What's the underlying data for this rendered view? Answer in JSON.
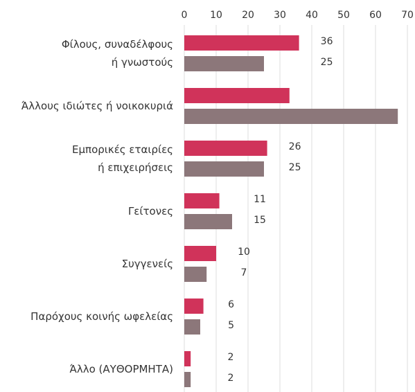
{
  "chart_data": {
    "type": "bar",
    "orientation": "horizontal",
    "categories": [
      "Φίλους, συναδέλφους\nή γνωστούς",
      "Άλλους ιδιώτες ή νοικοκυριά",
      "Εμπορικές εταιρίες\nή επιχειρήσεις",
      "Γείτονες",
      "Συγγενείς",
      "Παρόχους κοινής ωφελείας",
      "Άλλο (ΑΥΘΟΡΜΗΤΑ)"
    ],
    "series": [
      {
        "color": "#d0335a",
        "values": [
          36,
          33,
          26,
          11,
          10,
          6,
          2
        ],
        "value_labels": [
          36,
          null,
          26,
          11,
          10,
          6,
          2
        ]
      },
      {
        "color": "#8c777a",
        "values": [
          25,
          67,
          25,
          15,
          7,
          5,
          2
        ],
        "value_labels": [
          25,
          null,
          25,
          15,
          7,
          5,
          2
        ]
      }
    ],
    "xlim": [
      0,
      70
    ],
    "xticks": [
      0,
      10,
      20,
      30,
      40,
      50,
      60,
      70
    ],
    "grid": true
  }
}
